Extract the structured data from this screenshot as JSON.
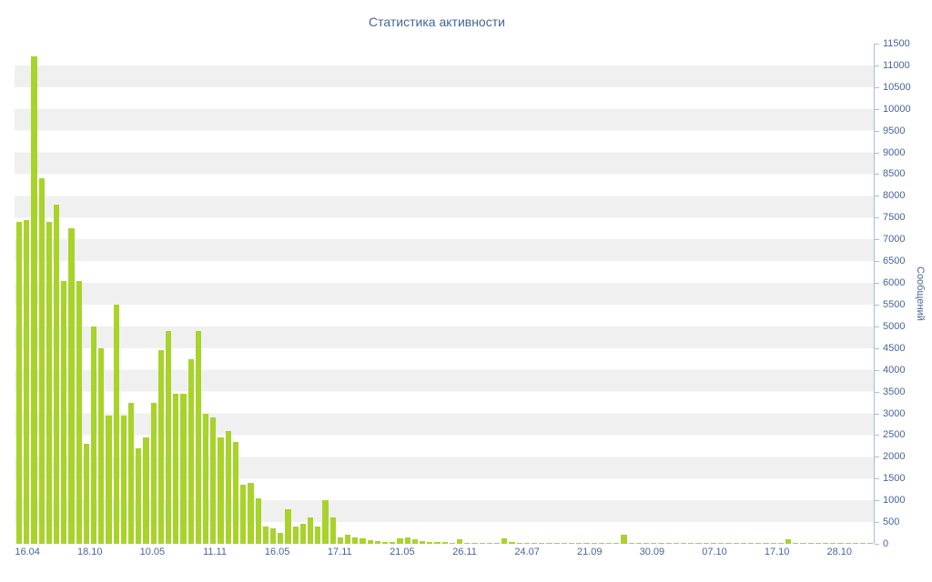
{
  "title": "Статистика активности",
  "colors": {
    "background": "#ffffff",
    "stripe": "#f0f0f0",
    "bar": "#a8d32b",
    "text": "#46659a",
    "axis": "#a9bdd9"
  },
  "chart_data": {
    "type": "bar",
    "title": "Статистика активности",
    "xlabel": "",
    "ylabel": "Сообщений",
    "ylim": [
      0,
      11500
    ],
    "y_tick_step": 500,
    "y_ticks": [
      0,
      500,
      1000,
      1500,
      2000,
      2500,
      3000,
      3500,
      4000,
      4500,
      5000,
      5500,
      6000,
      6500,
      7000,
      7500,
      8000,
      8500,
      9000,
      9500,
      10000,
      10500,
      11000,
      11500
    ],
    "x_tick_labels": [
      "16.04",
      "18.10",
      "10.05",
      "11.11",
      "16.05",
      "17.11",
      "21.05",
      "26.11",
      "24.07",
      "21.09",
      "30.09",
      "07.10",
      "17.10",
      "28.10"
    ],
    "grid": "striped-background",
    "legend": "none",
    "y_axis_position": "right",
    "values": [
      7400,
      7450,
      11200,
      8400,
      7400,
      7800,
      6050,
      7250,
      6050,
      2300,
      5000,
      4500,
      2950,
      5500,
      2950,
      3250,
      2200,
      2450,
      3250,
      4450,
      4900,
      3450,
      3450,
      4250,
      4900,
      3000,
      2900,
      2450,
      2600,
      2350,
      1350,
      1400,
      1050,
      400,
      350,
      250,
      800,
      400,
      450,
      600,
      400,
      1000,
      600,
      150,
      200,
      150,
      120,
      80,
      60,
      50,
      40,
      120,
      150,
      100,
      60,
      50,
      40,
      40,
      30,
      100,
      30,
      20,
      20,
      20,
      30,
      120,
      40,
      20,
      20,
      15,
      15,
      10,
      10,
      10,
      15,
      10,
      10,
      15,
      10,
      10,
      10,
      200,
      20,
      10,
      10,
      15,
      10,
      10,
      10,
      10,
      10,
      10,
      10,
      10,
      15,
      10,
      10,
      10,
      10,
      10,
      10,
      10,
      10,
      100,
      10,
      10,
      10,
      10,
      10,
      10,
      15,
      10,
      10,
      10,
      10
    ]
  }
}
